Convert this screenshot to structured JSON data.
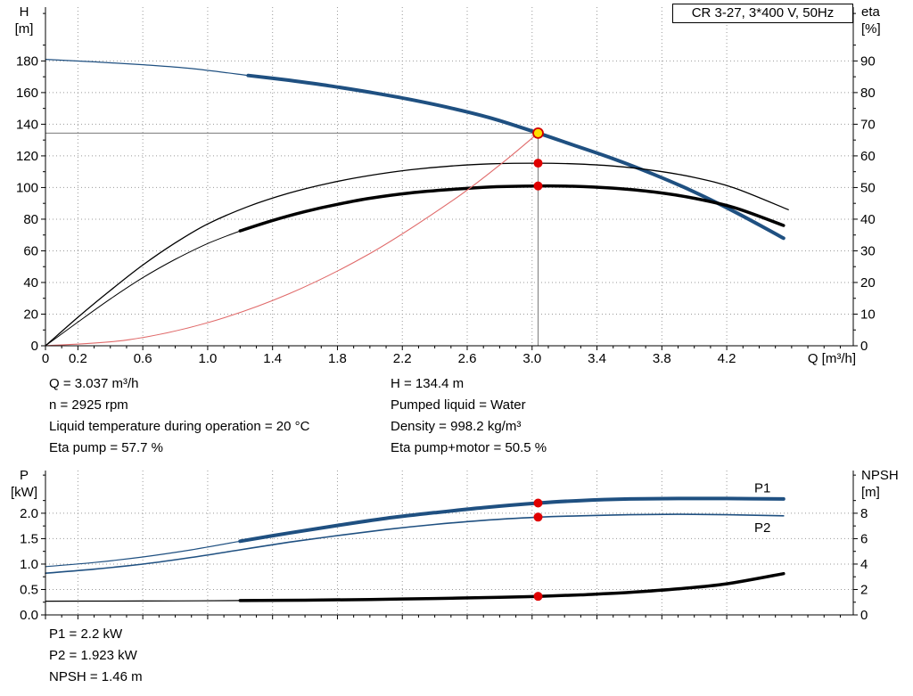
{
  "title_box": "CR 3-27, 3*400 V, 50Hz",
  "info_top_left": [
    "Q = 3.037 m³/h",
    "n = 2925 rpm",
    "Liquid temperature during operation = 20 °C",
    "Eta pump = 57.7 %"
  ],
  "info_top_right": [
    "H = 134.4 m",
    "Pumped liquid = Water",
    "Density = 998.2 kg/m³",
    "Eta pump+motor = 50.5 %"
  ],
  "info_bottom": [
    "P1 = 2.2 kW",
    "P2 = 1.923 kW",
    "NPSH = 1.46 m"
  ],
  "colors": {
    "curve_blue": "#1f5081",
    "curve_black": "#000000",
    "system_curve_red": "#e06a6a",
    "marker_red": "#e00000",
    "duty_fill": "#ffdf00",
    "duty_stroke": "#d00000",
    "grid": "#999999",
    "crosshair": "#7a7a7a",
    "axis": "#000000"
  },
  "chart_data": [
    {
      "name": "qh-eta-chart",
      "type": "line",
      "title": "CR 3-27, 3*400 V, 50Hz",
      "x_axis": {
        "label": "Q [m³/h]",
        "min": 0,
        "max": 4.98,
        "minor_step": 0.1,
        "show_labels": true,
        "major_ticks": [
          0,
          0.2,
          0.6,
          1.0,
          1.4,
          1.8,
          2.2,
          2.6,
          3.0,
          3.4,
          3.8,
          4.2
        ]
      },
      "y_left": {
        "label_lines": [
          "H",
          "[m]"
        ],
        "min": 0,
        "max": 214,
        "tick_step": 20,
        "max_tick": 180,
        "decimals": 0
      },
      "y_right": {
        "label_lines": [
          "eta",
          "[%]"
        ],
        "min": 0,
        "max": 107,
        "tick_step": 10,
        "max_tick": 90,
        "decimals": 0
      },
      "crosshair": {
        "x": 3.037,
        "y": 134.4
      },
      "series": [
        {
          "name": "qh-curve-lead",
          "axis": "left",
          "color": "#1f5081",
          "width": 1.2,
          "points": [
            [
              0,
              181
            ],
            [
              0.3,
              179.4
            ],
            [
              0.6,
              177.6
            ],
            [
              0.9,
              175.2
            ],
            [
              1.25,
              170.8
            ]
          ]
        },
        {
          "name": "qh-curve",
          "axis": "left",
          "color": "#1f5081",
          "width": 4,
          "points": [
            [
              1.25,
              170.8
            ],
            [
              1.5,
              167.8
            ],
            [
              1.75,
              164.3
            ],
            [
              2.0,
              160.2
            ],
            [
              2.25,
              155.6
            ],
            [
              2.5,
              150.2
            ],
            [
              2.75,
              143.8
            ],
            [
              3.037,
              134.4
            ],
            [
              3.25,
              127.0
            ],
            [
              3.5,
              118.2
            ],
            [
              3.75,
              108.3
            ],
            [
              4.0,
              97.2
            ],
            [
              4.25,
              84.6
            ],
            [
              4.55,
              68.0
            ]
          ]
        },
        {
          "name": "eta-pump-curve",
          "axis": "right",
          "color": "#000000",
          "width": 1.3,
          "points": [
            [
              0,
              0
            ],
            [
              0.2,
              9
            ],
            [
              0.4,
              17.5
            ],
            [
              0.6,
              25.5
            ],
            [
              0.8,
              32.5
            ],
            [
              1.0,
              38.5
            ],
            [
              1.25,
              44.0
            ],
            [
              1.5,
              48.2
            ],
            [
              1.75,
              51.4
            ],
            [
              2.0,
              53.8
            ],
            [
              2.25,
              55.6
            ],
            [
              2.5,
              56.8
            ],
            [
              2.75,
              57.5
            ],
            [
              3.037,
              57.7
            ],
            [
              3.25,
              57.5
            ],
            [
              3.5,
              56.8
            ],
            [
              3.75,
              55.4
            ],
            [
              4.0,
              53.2
            ],
            [
              4.25,
              49.8
            ],
            [
              4.58,
              43.0
            ]
          ]
        },
        {
          "name": "eta-pump-motor-lead",
          "axis": "right",
          "color": "#000000",
          "width": 1,
          "points": [
            [
              0,
              0
            ],
            [
              0.2,
              7.5
            ],
            [
              0.4,
              14.8
            ],
            [
              0.6,
              21.5
            ],
            [
              0.8,
              27.3
            ],
            [
              1.0,
              32.3
            ],
            [
              1.2,
              36.3
            ]
          ]
        },
        {
          "name": "eta-pump-motor-curve",
          "axis": "right",
          "color": "#000000",
          "width": 3.5,
          "points": [
            [
              1.2,
              36.3
            ],
            [
              1.4,
              39.6
            ],
            [
              1.6,
              42.4
            ],
            [
              1.8,
              44.7
            ],
            [
              2.0,
              46.6
            ],
            [
              2.25,
              48.3
            ],
            [
              2.5,
              49.4
            ],
            [
              2.75,
              50.2
            ],
            [
              3.037,
              50.5
            ],
            [
              3.25,
              50.4
            ],
            [
              3.5,
              49.8
            ],
            [
              3.75,
              48.6
            ],
            [
              4.0,
              46.6
            ],
            [
              4.25,
              43.6
            ],
            [
              4.55,
              38.0
            ]
          ]
        },
        {
          "name": "system-curve",
          "axis": "left",
          "color": "#e06a6a",
          "width": 1.1,
          "points": [
            [
              0,
              0
            ],
            [
              0.5,
              3.6
            ],
            [
              1.0,
              14.6
            ],
            [
              1.5,
              32.8
            ],
            [
              2.0,
              58.3
            ],
            [
              2.5,
              91.1
            ],
            [
              2.8,
              114.2
            ],
            [
              3.037,
              134.4
            ]
          ]
        }
      ],
      "markers": [
        {
          "name": "duty-point",
          "axis": "left",
          "x": 3.037,
          "y": 134.4,
          "style": "duty"
        },
        {
          "name": "eta-pump-point",
          "axis": "right",
          "x": 3.037,
          "y": 57.7,
          "style": "dot"
        },
        {
          "name": "eta-pump-motor-point",
          "axis": "right",
          "x": 3.037,
          "y": 50.5,
          "style": "dot"
        }
      ],
      "annotations": []
    },
    {
      "name": "power-npsh-chart",
      "type": "line",
      "title": "",
      "x_axis": {
        "label": "",
        "min": 0,
        "max": 4.98,
        "minor_step": 0.1,
        "show_labels": false,
        "major_ticks": [
          0,
          0.2,
          0.6,
          1.0,
          1.4,
          1.8,
          2.2,
          2.6,
          3.0,
          3.4,
          3.8,
          4.2
        ]
      },
      "y_left": {
        "label_lines": [
          "P",
          "[kW]"
        ],
        "min": 0,
        "max": 2.84,
        "tick_step": 0.5,
        "max_tick": 2.0,
        "decimals": 1
      },
      "y_right": {
        "label_lines": [
          "NPSH",
          "[m]"
        ],
        "min": 0,
        "max": 11.36,
        "tick_step": 2,
        "max_tick": 8,
        "decimals": 0
      },
      "series": [
        {
          "name": "p1-curve-lead",
          "axis": "left",
          "color": "#1f5081",
          "width": 1.2,
          "points": [
            [
              0,
              0.95
            ],
            [
              0.3,
              1.03
            ],
            [
              0.6,
              1.14
            ],
            [
              0.9,
              1.28
            ],
            [
              1.2,
              1.45
            ]
          ]
        },
        {
          "name": "p1-curve",
          "axis": "left",
          "color": "#1f5081",
          "width": 4,
          "points": [
            [
              1.2,
              1.45
            ],
            [
              1.5,
              1.61
            ],
            [
              1.8,
              1.76
            ],
            [
              2.1,
              1.9
            ],
            [
              2.4,
              2.01
            ],
            [
              2.7,
              2.11
            ],
            [
              3.037,
              2.2
            ],
            [
              3.3,
              2.25
            ],
            [
              3.6,
              2.28
            ],
            [
              3.9,
              2.29
            ],
            [
              4.2,
              2.29
            ],
            [
              4.55,
              2.28
            ]
          ]
        },
        {
          "name": "p2-curve",
          "axis": "left",
          "color": "#1f5081",
          "width": 1.6,
          "points": [
            [
              0,
              0.82
            ],
            [
              0.3,
              0.9
            ],
            [
              0.6,
              1.0
            ],
            [
              0.9,
              1.13
            ],
            [
              1.2,
              1.28
            ],
            [
              1.5,
              1.43
            ],
            [
              1.8,
              1.56
            ],
            [
              2.1,
              1.68
            ],
            [
              2.4,
              1.78
            ],
            [
              2.7,
              1.86
            ],
            [
              3.037,
              1.923
            ],
            [
              3.3,
              1.95
            ],
            [
              3.6,
              1.97
            ],
            [
              3.9,
              1.98
            ],
            [
              4.2,
              1.97
            ],
            [
              4.55,
              1.95
            ]
          ]
        },
        {
          "name": "npsh-curve-lead",
          "axis": "right",
          "color": "#000000",
          "width": 1.2,
          "points": [
            [
              0,
              1.08
            ],
            [
              0.4,
              1.09
            ],
            [
              0.8,
              1.1
            ],
            [
              1.2,
              1.13
            ]
          ]
        },
        {
          "name": "npsh-curve",
          "axis": "right",
          "color": "#000000",
          "width": 3.5,
          "points": [
            [
              1.2,
              1.13
            ],
            [
              1.6,
              1.16
            ],
            [
              2.0,
              1.21
            ],
            [
              2.4,
              1.29
            ],
            [
              2.8,
              1.38
            ],
            [
              3.037,
              1.46
            ],
            [
              3.3,
              1.58
            ],
            [
              3.6,
              1.77
            ],
            [
              3.9,
              2.05
            ],
            [
              4.2,
              2.45
            ],
            [
              4.55,
              3.25
            ]
          ]
        }
      ],
      "markers": [
        {
          "name": "p1-point",
          "axis": "left",
          "x": 3.037,
          "y": 2.2,
          "style": "dot"
        },
        {
          "name": "p2-point",
          "axis": "left",
          "x": 3.037,
          "y": 1.923,
          "style": "dot"
        },
        {
          "name": "npsh-point",
          "axis": "right",
          "x": 3.037,
          "y": 1.46,
          "style": "dot"
        }
      ],
      "annotations": [
        {
          "name": "p1-label",
          "text": "P1",
          "axis": "left",
          "x": 4.42,
          "y": 2.5,
          "color": "#1f5081"
        },
        {
          "name": "p2-label",
          "text": "P2",
          "axis": "left",
          "x": 4.42,
          "y": 1.72,
          "color": "#1f5081"
        }
      ]
    }
  ]
}
